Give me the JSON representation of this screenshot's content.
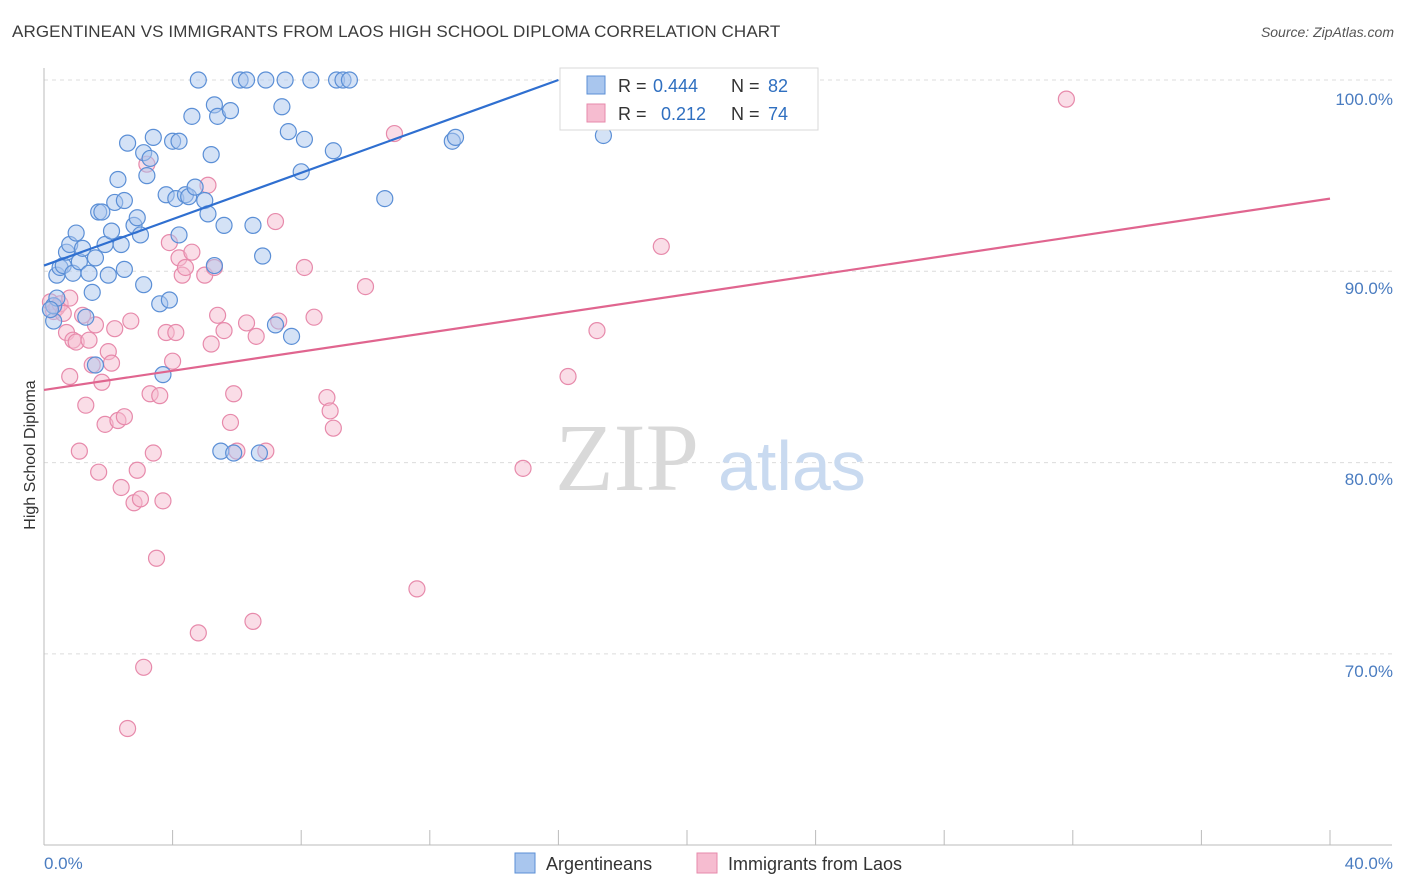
{
  "title": "ARGENTINEAN VS IMMIGRANTS FROM LAOS HIGH SCHOOL DIPLOMA CORRELATION CHART",
  "source": "Source: ZipAtlas.com",
  "colors": {
    "blue_fill": "#a9c6ee",
    "blue_stroke": "#5b8fd6",
    "blue_line": "#2f6fd0",
    "pink_fill": "#f6bcd0",
    "pink_stroke": "#e78aab",
    "pink_line": "#e0658f",
    "axis_label": "#4a7cc0",
    "grid": "#dcdcdc"
  },
  "chart_data": {
    "type": "scatter",
    "title": "ARGENTINEAN VS IMMIGRANTS FROM LAOS HIGH SCHOOL DIPLOMA CORRELATION CHART",
    "xlabel": "",
    "ylabel": "High School Diploma",
    "xlim": [
      0,
      40
    ],
    "ylim": [
      62,
      101
    ],
    "x_tick_labels": [
      "0.0%",
      "40.0%"
    ],
    "y_ticks": [
      70,
      80,
      90,
      100
    ],
    "y_tick_labels": [
      "70.0%",
      "80.0%",
      "90.0%",
      "100.0%"
    ],
    "watermark": {
      "zip": "ZIP",
      "atlas": "atlas"
    },
    "legend": {
      "r_label": "R =",
      "n_label": "N =",
      "rows": [
        {
          "r": "0.444",
          "n": "82"
        },
        {
          "r": "0.212",
          "n": "74"
        }
      ]
    },
    "series": [
      {
        "name": "Argentineans",
        "trend": {
          "x0": 0,
          "y0": 90.3,
          "x1": 16,
          "y1": 100.0
        },
        "points": [
          [
            0.3,
            87.4
          ],
          [
            0.3,
            88.2
          ],
          [
            0.4,
            88.6
          ],
          [
            0.4,
            89.8
          ],
          [
            0.5,
            90.2
          ],
          [
            0.6,
            90.3
          ],
          [
            0.7,
            91.0
          ],
          [
            0.8,
            91.4
          ],
          [
            0.9,
            89.9
          ],
          [
            1.0,
            92.0
          ],
          [
            1.1,
            90.5
          ],
          [
            1.2,
            91.2
          ],
          [
            1.3,
            87.6
          ],
          [
            1.4,
            89.9
          ],
          [
            1.5,
            88.9
          ],
          [
            1.6,
            85.1
          ],
          [
            1.6,
            90.7
          ],
          [
            1.7,
            93.1
          ],
          [
            1.8,
            93.1
          ],
          [
            1.9,
            91.4
          ],
          [
            2.0,
            89.8
          ],
          [
            2.1,
            92.1
          ],
          [
            2.2,
            93.6
          ],
          [
            2.3,
            94.8
          ],
          [
            2.4,
            91.4
          ],
          [
            2.5,
            93.7
          ],
          [
            2.5,
            90.1
          ],
          [
            2.6,
            96.7
          ],
          [
            2.8,
            92.4
          ],
          [
            2.9,
            92.8
          ],
          [
            3.0,
            91.9
          ],
          [
            3.1,
            96.2
          ],
          [
            3.1,
            89.3
          ],
          [
            3.2,
            95.0
          ],
          [
            3.3,
            95.9
          ],
          [
            3.4,
            97.0
          ],
          [
            3.6,
            88.3
          ],
          [
            3.7,
            84.6
          ],
          [
            3.8,
            94.0
          ],
          [
            3.9,
            88.5
          ],
          [
            4.0,
            96.8
          ],
          [
            4.1,
            93.8
          ],
          [
            4.2,
            91.9
          ],
          [
            4.2,
            96.8
          ],
          [
            4.4,
            94.0
          ],
          [
            4.5,
            93.9
          ],
          [
            4.6,
            98.1
          ],
          [
            4.7,
            94.4
          ],
          [
            4.8,
            100.0
          ],
          [
            5.0,
            93.7
          ],
          [
            5.1,
            93.0
          ],
          [
            5.2,
            96.1
          ],
          [
            5.3,
            98.7
          ],
          [
            5.3,
            90.3
          ],
          [
            5.4,
            98.1
          ],
          [
            5.5,
            80.6
          ],
          [
            5.6,
            92.4
          ],
          [
            5.8,
            98.4
          ],
          [
            5.9,
            80.5
          ],
          [
            6.1,
            100.0
          ],
          [
            6.3,
            100.0
          ],
          [
            6.5,
            92.4
          ],
          [
            6.7,
            80.5
          ],
          [
            6.8,
            90.8
          ],
          [
            6.9,
            100.0
          ],
          [
            7.2,
            87.2
          ],
          [
            7.4,
            98.6
          ],
          [
            7.5,
            100.0
          ],
          [
            7.6,
            97.3
          ],
          [
            7.7,
            86.6
          ],
          [
            8.0,
            95.2
          ],
          [
            8.1,
            96.9
          ],
          [
            8.3,
            100.0
          ],
          [
            9.0,
            96.3
          ],
          [
            9.1,
            100.0
          ],
          [
            9.3,
            100.0
          ],
          [
            9.5,
            100.0
          ],
          [
            10.6,
            93.8
          ],
          [
            12.7,
            96.8
          ],
          [
            12.8,
            97.0
          ],
          [
            17.4,
            97.1
          ],
          [
            0.2,
            88.0
          ]
        ]
      },
      {
        "name": "Immigrants from Laos",
        "trend": {
          "x0": 0,
          "y0": 83.8,
          "x1": 40,
          "y1": 93.8
        },
        "points": [
          [
            0.2,
            88.4
          ],
          [
            0.3,
            87.9
          ],
          [
            0.4,
            88.1
          ],
          [
            0.5,
            88.3
          ],
          [
            0.6,
            87.8
          ],
          [
            0.7,
            86.8
          ],
          [
            0.8,
            84.5
          ],
          [
            0.8,
            88.6
          ],
          [
            0.9,
            86.4
          ],
          [
            1.0,
            86.3
          ],
          [
            1.1,
            80.6
          ],
          [
            1.2,
            87.7
          ],
          [
            1.3,
            83.0
          ],
          [
            1.4,
            86.4
          ],
          [
            1.5,
            85.1
          ],
          [
            1.6,
            87.2
          ],
          [
            1.7,
            79.5
          ],
          [
            1.8,
            84.2
          ],
          [
            1.9,
            82.0
          ],
          [
            2.0,
            85.8
          ],
          [
            2.1,
            85.2
          ],
          [
            2.2,
            87.0
          ],
          [
            2.3,
            82.2
          ],
          [
            2.4,
            78.7
          ],
          [
            2.5,
            82.4
          ],
          [
            2.6,
            66.1
          ],
          [
            2.7,
            87.4
          ],
          [
            2.8,
            77.9
          ],
          [
            2.9,
            79.6
          ],
          [
            3.0,
            78.1
          ],
          [
            3.1,
            69.3
          ],
          [
            3.2,
            95.6
          ],
          [
            3.3,
            83.6
          ],
          [
            3.4,
            80.5
          ],
          [
            3.5,
            75.0
          ],
          [
            3.6,
            83.5
          ],
          [
            3.7,
            78.0
          ],
          [
            3.8,
            86.8
          ],
          [
            3.9,
            91.5
          ],
          [
            4.0,
            85.3
          ],
          [
            4.1,
            86.8
          ],
          [
            4.2,
            90.7
          ],
          [
            4.3,
            89.8
          ],
          [
            4.4,
            90.2
          ],
          [
            4.6,
            91.0
          ],
          [
            4.8,
            71.1
          ],
          [
            5.0,
            89.8
          ],
          [
            5.1,
            94.5
          ],
          [
            5.2,
            86.2
          ],
          [
            5.3,
            90.2
          ],
          [
            5.4,
            87.7
          ],
          [
            5.6,
            86.9
          ],
          [
            5.8,
            82.1
          ],
          [
            5.9,
            83.6
          ],
          [
            6.0,
            80.6
          ],
          [
            6.3,
            87.3
          ],
          [
            6.5,
            71.7
          ],
          [
            6.6,
            86.6
          ],
          [
            6.9,
            80.6
          ],
          [
            7.2,
            92.6
          ],
          [
            7.3,
            87.4
          ],
          [
            8.1,
            90.2
          ],
          [
            8.4,
            87.6
          ],
          [
            8.8,
            83.4
          ],
          [
            8.9,
            82.7
          ],
          [
            9.0,
            81.8
          ],
          [
            10.0,
            89.2
          ],
          [
            10.9,
            97.2
          ],
          [
            11.6,
            73.4
          ],
          [
            14.9,
            79.7
          ],
          [
            16.3,
            84.5
          ],
          [
            17.2,
            86.9
          ],
          [
            19.2,
            91.3
          ],
          [
            31.8,
            99.0
          ]
        ]
      }
    ]
  }
}
